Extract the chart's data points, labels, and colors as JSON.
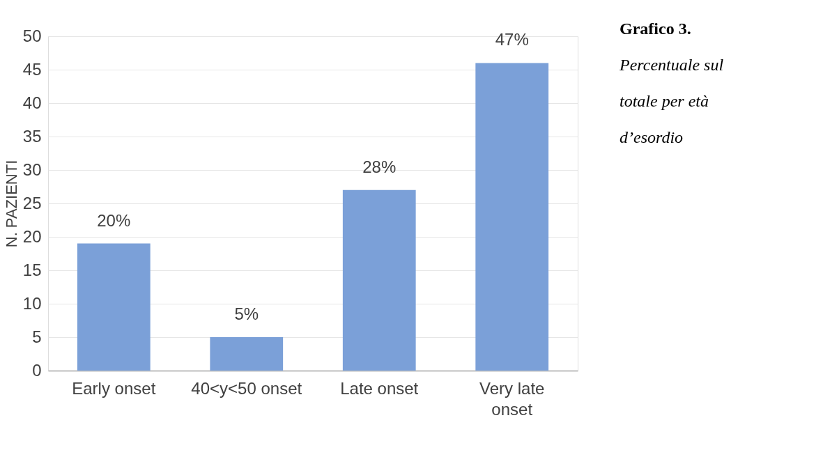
{
  "chart_data": {
    "type": "bar",
    "title": "Grafico 3.",
    "subtitle": "Percentuale sul totale per età d’esordio",
    "ylabel": "N. PAZIENTI",
    "categories": [
      "Early onset",
      "40<y<50 onset",
      "Late onset",
      "Very late onset"
    ],
    "values": [
      19,
      5,
      27,
      46
    ],
    "color": "#7ba0d8",
    "annotations": [
      {
        "text": "20%",
        "x": "Early onset",
        "y": 19
      },
      {
        "text": "5%",
        "x": "40<y<50 onset",
        "y": 5
      },
      {
        "text": "28%",
        "x": "Late onset",
        "y": 27
      },
      {
        "text": "47%",
        "x": "Very late onset",
        "y": 46
      }
    ],
    "ylim": [
      0,
      50
    ],
    "yticks": [
      0,
      5,
      10,
      15,
      20,
      25,
      30,
      35,
      40,
      45,
      50
    ],
    "grid": "y"
  }
}
